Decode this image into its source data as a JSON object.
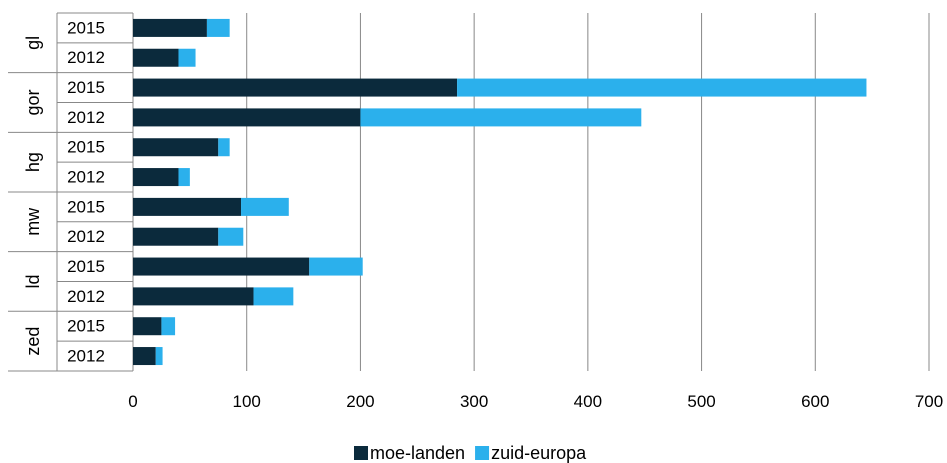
{
  "chart_data": {
    "type": "bar",
    "orientation": "horizontal",
    "stacked": true,
    "groups": [
      {
        "label": "gl",
        "rows": [
          {
            "year": "2015",
            "values": [
              65,
              20
            ]
          },
          {
            "year": "2012",
            "values": [
              40,
              15
            ]
          }
        ]
      },
      {
        "label": "gor",
        "rows": [
          {
            "year": "2015",
            "values": [
              285,
              360
            ]
          },
          {
            "year": "2012",
            "values": [
              200,
              247
            ]
          }
        ]
      },
      {
        "label": "hg",
        "rows": [
          {
            "year": "2015",
            "values": [
              75,
              10
            ]
          },
          {
            "year": "2012",
            "values": [
              40,
              10
            ]
          }
        ]
      },
      {
        "label": "mw",
        "rows": [
          {
            "year": "2015",
            "values": [
              95,
              42
            ]
          },
          {
            "year": "2012",
            "values": [
              75,
              22
            ]
          }
        ]
      },
      {
        "label": "ld",
        "rows": [
          {
            "year": "2015",
            "values": [
              155,
              47
            ]
          },
          {
            "year": "2012",
            "values": [
              106,
              35
            ]
          }
        ]
      },
      {
        "label": "zed",
        "rows": [
          {
            "year": "2015",
            "values": [
              25,
              12
            ]
          },
          {
            "year": "2012",
            "values": [
              20,
              6
            ]
          }
        ]
      }
    ],
    "series": [
      {
        "name": "moe-landen",
        "color": "#0b2a3c"
      },
      {
        "name": "zuid-europa",
        "color": "#2bb0ec"
      }
    ],
    "xlim": [
      0,
      700
    ],
    "xticks": [
      "0",
      "100",
      "200",
      "300",
      "400",
      "500",
      "600",
      "700"
    ],
    "grid": true,
    "legend_position": "bottom"
  }
}
